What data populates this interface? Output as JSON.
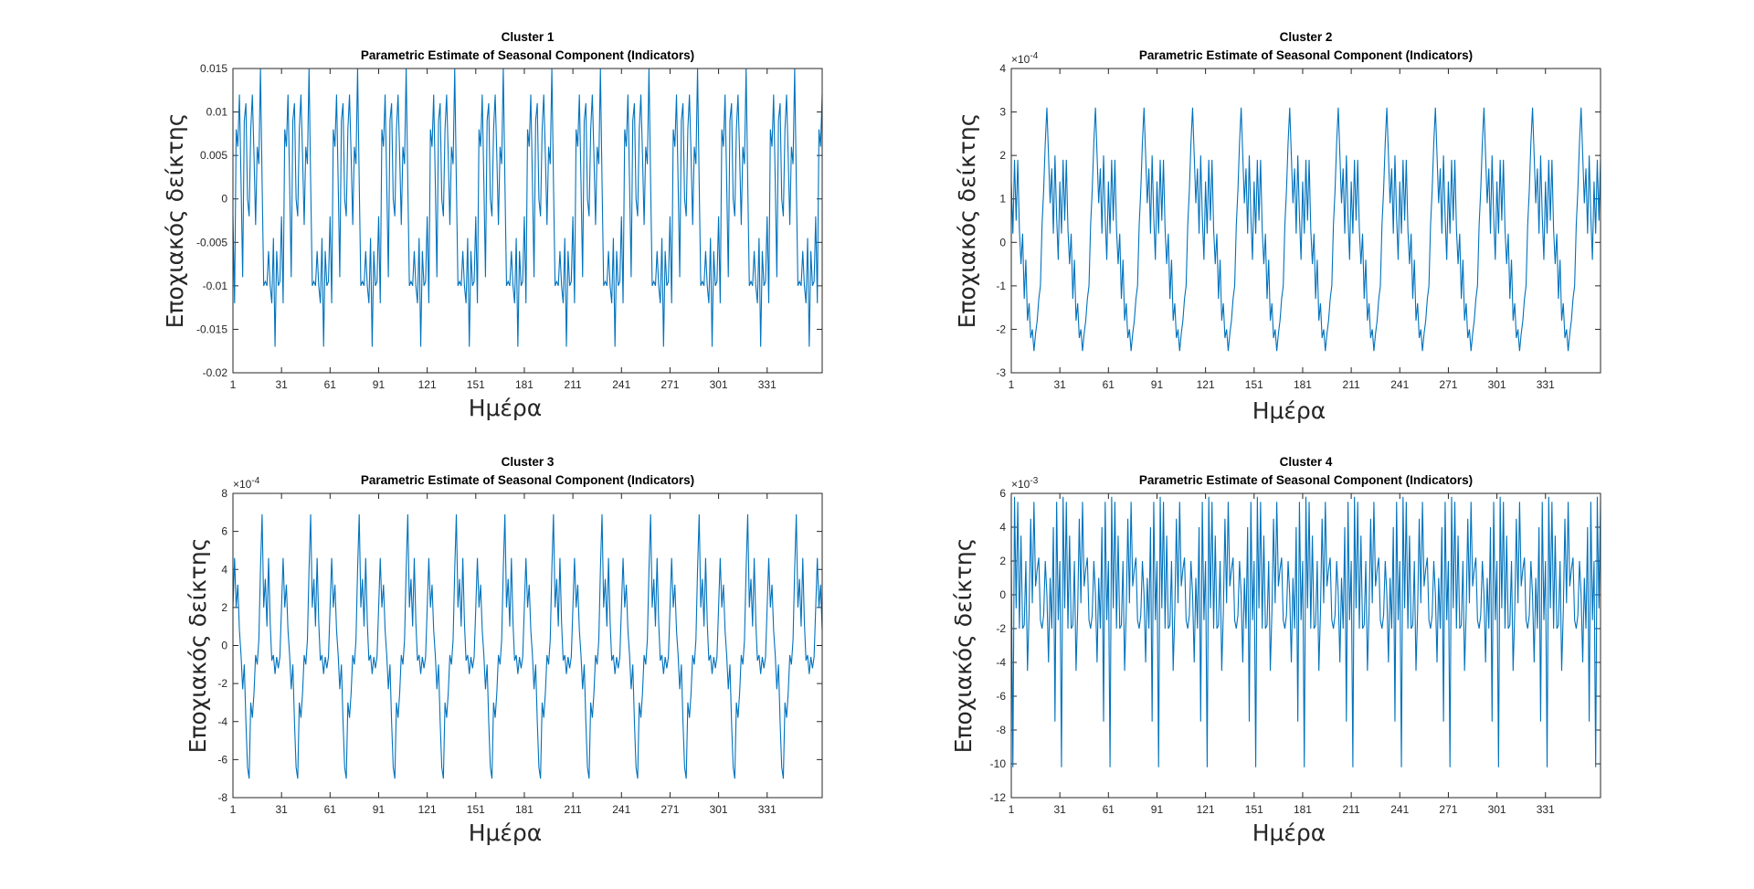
{
  "figure": {
    "background": "#ffffff",
    "line_color": "#0072BD",
    "axes_color": "#262626"
  },
  "chart_data": [
    {
      "type": "line",
      "title": "Cluster 1",
      "subtitle": "Parametric Estimate of Seasonal Component (Indicators)",
      "xlabel": "Ημέρα",
      "ylabel": "Εποχιακός δείκτης",
      "exponent_label": "",
      "xlim": [
        1,
        365
      ],
      "ylim": [
        -0.02,
        0.015
      ],
      "xticks": [
        1,
        31,
        61,
        91,
        121,
        151,
        181,
        211,
        241,
        271,
        301,
        331
      ],
      "xtick_labels": [
        "1",
        "31",
        "61",
        "91",
        "121",
        "151",
        "181",
        "211",
        "241",
        "271",
        "301",
        "331"
      ],
      "yticks": [
        -0.02,
        -0.015,
        -0.01,
        -0.005,
        0,
        0.005,
        0.01,
        0.015
      ],
      "ytick_labels": [
        "-0.02",
        "-0.015",
        "-0.01",
        "-0.005",
        "0",
        "0.005",
        "0.01",
        "0.015"
      ],
      "period": 30,
      "pattern": [
        -0.002,
        -0.012,
        0.008,
        0.006,
        0.012,
        0.002,
        -0.009,
        0.009,
        0.011,
        0.0,
        -0.002,
        0.008,
        0.012,
        0.005,
        -0.003,
        0.006,
        0.004,
        0.015,
        0.002,
        -0.01,
        -0.0095,
        -0.01,
        -0.006,
        -0.01,
        -0.012,
        -0.0045,
        -0.017,
        -0.006,
        -0.01,
        -0.0095
      ]
    },
    {
      "type": "line",
      "title": "Cluster 2",
      "subtitle": "Parametric Estimate of Seasonal Component (Indicators)",
      "xlabel": "Ημέρα",
      "ylabel": "Εποχιακός δείκτης",
      "exponent_label": "×10^-4",
      "xlim": [
        1,
        365
      ],
      "ylim": [
        -3,
        4
      ],
      "xticks": [
        1,
        31,
        61,
        91,
        121,
        151,
        181,
        211,
        241,
        271,
        301,
        331
      ],
      "xtick_labels": [
        "1",
        "31",
        "61",
        "91",
        "121",
        "151",
        "181",
        "211",
        "241",
        "271",
        "301",
        "331"
      ],
      "yticks": [
        -3,
        -2,
        -1,
        0,
        1,
        2,
        3,
        4
      ],
      "ytick_labels": [
        "-3",
        "-2",
        "-1",
        "0",
        "1",
        "2",
        "3",
        "4"
      ],
      "period": 30,
      "pattern": [
        1.4,
        0.2,
        1.9,
        0.5,
        1.9,
        0.3,
        -0.5,
        0.2,
        -1.3,
        -0.4,
        -1.8,
        -1.4,
        -2.2,
        -2.0,
        -2.5,
        -2.1,
        -1.8,
        -1.3,
        -1.0,
        0.4,
        1.2,
        2.3,
        3.1,
        2.0,
        0.9,
        1.7,
        0.2,
        2.0,
        0.6,
        -0.4
      ]
    },
    {
      "type": "line",
      "title": "Cluster 3",
      "subtitle": "Parametric Estimate of Seasonal Component (Indicators)",
      "xlabel": "Ημέρα",
      "ylabel": "Εποχιακός δείκτης",
      "exponent_label": "×10^-4",
      "xlim": [
        1,
        365
      ],
      "ylim": [
        -8,
        8
      ],
      "xticks": [
        1,
        31,
        61,
        91,
        121,
        151,
        181,
        211,
        241,
        271,
        301,
        331
      ],
      "xtick_labels": [
        "1",
        "31",
        "61",
        "91",
        "121",
        "151",
        "181",
        "211",
        "241",
        "271",
        "301",
        "331"
      ],
      "yticks": [
        -8,
        -6,
        -4,
        -2,
        0,
        2,
        4,
        6,
        8
      ],
      "ytick_labels": [
        "-8",
        "-6",
        "-4",
        "-2",
        "0",
        "2",
        "4",
        "6",
        "8"
      ],
      "period": 30,
      "pattern": [
        2.0,
        4.6,
        2.0,
        3.2,
        0.8,
        -0.5,
        -2.3,
        -1.0,
        -4.0,
        -6.4,
        -7.0,
        -3.0,
        -3.8,
        -2.5,
        -0.5,
        -1.0,
        0.3,
        4.0,
        6.9,
        2.0,
        3.5,
        1.0,
        4.6,
        1.2,
        -0.8,
        -0.5,
        -1.5,
        -0.6,
        -1.2,
        -0.6
      ]
    },
    {
      "type": "line",
      "title": "Cluster 4",
      "subtitle": "Parametric Estimate of Seasonal Component (Indicators)",
      "xlabel": "Ημέρα",
      "ylabel": "Εποχιακός δείκτης",
      "exponent_label": "×10^-3",
      "xlim": [
        1,
        365
      ],
      "ylim": [
        -12,
        6
      ],
      "xticks": [
        1,
        31,
        61,
        91,
        121,
        151,
        181,
        211,
        241,
        271,
        301,
        331
      ],
      "xtick_labels": [
        "1",
        "31",
        "61",
        "91",
        "121",
        "151",
        "181",
        "211",
        "241",
        "271",
        "301",
        "331"
      ],
      "yticks": [
        -12,
        -10,
        -8,
        -6,
        -4,
        -2,
        0,
        2,
        4,
        6
      ],
      "ytick_labels": [
        "-12",
        "-10",
        "-8",
        "-6",
        "-4",
        "-2",
        "0",
        "2",
        "4",
        "6"
      ],
      "period": 30,
      "pattern": [
        2.0,
        -10.2,
        5.8,
        -0.8,
        5.5,
        -2.0,
        3.5,
        -2.0,
        -1.8,
        2.0,
        -4.5,
        -1.0,
        4.5,
        -0.5,
        5.5,
        0.5,
        1.5,
        2.2,
        -1.5,
        -2.0,
        -1.2,
        2.0,
        0.0,
        -4.0,
        1.0,
        -2.0,
        4.0,
        -7.5,
        5.5,
        -1.5
      ]
    }
  ]
}
